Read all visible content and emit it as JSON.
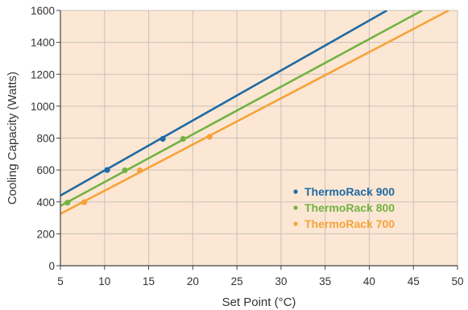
{
  "chart_data": {
    "type": "line",
    "title": "",
    "xlabel": "Set Point (°C)",
    "ylabel": "Cooling Capacity (Watts)",
    "xlim": [
      5,
      50
    ],
    "ylim": [
      0,
      1600
    ],
    "x_ticks": [
      5,
      10,
      15,
      20,
      25,
      30,
      35,
      40,
      45,
      50
    ],
    "y_ticks": [
      0,
      200,
      400,
      600,
      800,
      1000,
      1200,
      1400,
      1600
    ],
    "grid": true,
    "background_color": "#fbe7d3",
    "grid_color": "#c9c2bb",
    "legend_position": "lower-right",
    "series": [
      {
        "name": "ThermoRack 900",
        "color": "#1f6aa5",
        "line": [
          [
            5,
            440
          ],
          [
            42,
            1600
          ]
        ],
        "points": [
          [
            10.3,
            600
          ],
          [
            16.6,
            795
          ]
        ]
      },
      {
        "name": "ThermoRack 800",
        "color": "#72b243",
        "line": [
          [
            5,
            375
          ],
          [
            46,
            1600
          ]
        ],
        "points": [
          [
            5.8,
            395
          ],
          [
            12.3,
            598
          ],
          [
            18.9,
            795
          ]
        ]
      },
      {
        "name": "ThermoRack 700",
        "color": "#f7a23a",
        "line": [
          [
            5,
            325
          ],
          [
            49,
            1600
          ]
        ],
        "points": [
          [
            7.7,
            398
          ],
          [
            14,
            598
          ],
          [
            21.9,
            808
          ]
        ]
      }
    ]
  }
}
